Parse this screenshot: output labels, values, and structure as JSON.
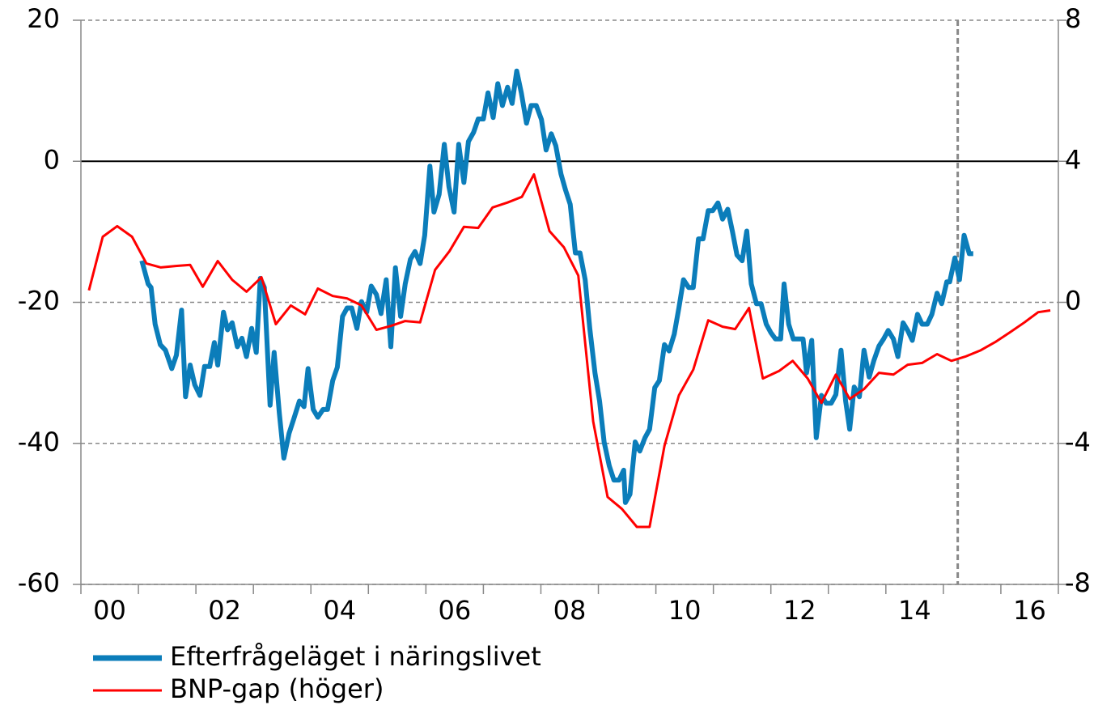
{
  "chart_data": {
    "type": "line",
    "xlim": [
      2000,
      2017
    ],
    "xticks": [
      {
        "value": 2000.5,
        "label": "00"
      },
      {
        "value": 2002.5,
        "label": "02"
      },
      {
        "value": 2004.5,
        "label": "04"
      },
      {
        "value": 2006.5,
        "label": "06"
      },
      {
        "value": 2008.5,
        "label": "08"
      },
      {
        "value": 2010.5,
        "label": "10"
      },
      {
        "value": 2012.5,
        "label": "12"
      },
      {
        "value": 2014.5,
        "label": "14"
      },
      {
        "value": 2016.5,
        "label": "16"
      }
    ],
    "ylim": [
      -60,
      20
    ],
    "yticks": [
      -60,
      -40,
      -20,
      0,
      20
    ],
    "y2lim": [
      -8,
      8
    ],
    "y2ticks": [
      -8,
      -4,
      0,
      4,
      8
    ],
    "grid": true,
    "zero_line": true,
    "forecast_line_x": 2015.25,
    "legend": "bottom-left",
    "series": [
      {
        "name": "Efterfrågeläget i näringslivet",
        "color": "#0b7dba",
        "x": [
          2001.06,
          2001.17,
          2001.22,
          2001.29,
          2001.38,
          2001.47,
          2001.58,
          2001.66,
          2001.75,
          2001.82,
          2001.9,
          2001.98,
          2002.07,
          2002.15,
          2002.24,
          2002.32,
          2002.38,
          2002.48,
          2002.55,
          2002.63,
          2002.72,
          2002.8,
          2002.88,
          2002.97,
          2003.05,
          2003.12,
          2003.19,
          2003.29,
          2003.36,
          2003.45,
          2003.53,
          2003.62,
          2003.7,
          2003.8,
          2003.88,
          2003.95,
          2004.04,
          2004.12,
          2004.21,
          2004.29,
          2004.38,
          2004.46,
          2004.55,
          2004.63,
          2004.71,
          2004.8,
          2004.88,
          2004.97,
          2005.05,
          2005.14,
          2005.22,
          2005.31,
          2005.39,
          2005.47,
          2005.56,
          2005.64,
          2005.73,
          2005.81,
          2005.9,
          2005.98,
          2006.07,
          2006.14,
          2006.23,
          2006.32,
          2006.4,
          2006.49,
          2006.57,
          2006.66,
          2006.74,
          2006.83,
          2006.91,
          2007,
          2007.08,
          2007.17,
          2007.25,
          2007.33,
          2007.42,
          2007.5,
          2007.58,
          2007.66,
          2007.75,
          2007.83,
          2007.92,
          2008.01,
          2008.09,
          2008.18,
          2008.26,
          2008.35,
          2008.43,
          2008.51,
          2008.6,
          2008.68,
          2008.77,
          2008.85,
          2008.94,
          2009.02,
          2009.1,
          2009.19,
          2009.27,
          2009.36,
          2009.44,
          2009.47,
          2009.55,
          2009.64,
          2009.72,
          2009.81,
          2009.89,
          2009.98,
          2010.06,
          2010.15,
          2010.23,
          2010.32,
          2010.4,
          2010.48,
          2010.57,
          2010.65,
          2010.74,
          2010.82,
          2010.91,
          2010.99,
          2011.08,
          2011.16,
          2011.25,
          2011.33,
          2011.41,
          2011.5,
          2011.58,
          2011.66,
          2011.75,
          2011.83,
          2011.92,
          2012,
          2012.08,
          2012.17,
          2012.23,
          2012.31,
          2012.39,
          2012.48,
          2012.56,
          2012.62,
          2012.71,
          2012.79,
          2012.88,
          2012.96,
          2013.05,
          2013.13,
          2013.22,
          2013.3,
          2013.37,
          2013.45,
          2013.54,
          2013.62,
          2013.71,
          2013.79,
          2013.88,
          2013.96,
          2014.04,
          2014.13,
          2014.21,
          2014.3,
          2014.38,
          2014.46,
          2014.55,
          2014.63,
          2014.72,
          2014.8,
          2014.89,
          2014.97,
          2015.06,
          2015.11,
          2015.2,
          2015.28,
          2015.36,
          2015.45,
          2015.52
        ],
        "values": [
          -14.1,
          -17.4,
          -17.9,
          -23.1,
          -26,
          -26.8,
          -29.4,
          -27.5,
          -21.1,
          -33.4,
          -28.9,
          -31.7,
          -33.2,
          -29.1,
          -29.1,
          -25.7,
          -28.9,
          -21.4,
          -23.9,
          -22.9,
          -26.3,
          -25.1,
          -27.7,
          -23.7,
          -27.1,
          -16.6,
          -17.9,
          -34.6,
          -27.1,
          -35.7,
          -42.1,
          -38.6,
          -36.6,
          -34,
          -34.8,
          -29.4,
          -35.2,
          -36.3,
          -35.2,
          -35.2,
          -31.1,
          -29.2,
          -22,
          -20.8,
          -20.8,
          -23.7,
          -19.9,
          -21.4,
          -17.7,
          -18.9,
          -21.6,
          -16.8,
          -26.3,
          -15.1,
          -22,
          -17.4,
          -13.9,
          -12.8,
          -14.5,
          -10.5,
          -0.7,
          -7.2,
          -4.7,
          2.4,
          -3.6,
          -7.2,
          2.4,
          -3,
          2.8,
          4.1,
          6,
          6,
          9.7,
          6.2,
          11,
          7.9,
          10.5,
          8.2,
          12.8,
          9.7,
          5.4,
          7.9,
          7.9,
          5.9,
          1.6,
          3.9,
          2.2,
          -1.8,
          -4.1,
          -6.1,
          -13,
          -13,
          -16.8,
          -23.7,
          -30,
          -34,
          -39.8,
          -43.2,
          -45.2,
          -45.2,
          -43.8,
          -48.4,
          -47.2,
          -39.8,
          -41.1,
          -39.2,
          -38,
          -32.1,
          -31.1,
          -26,
          -26.9,
          -24.5,
          -20.8,
          -16.8,
          -17.9,
          -17.9,
          -11,
          -11,
          -7,
          -7,
          -5.9,
          -8.2,
          -6.8,
          -9.9,
          -13.3,
          -14.1,
          -9.9,
          -17.4,
          -20.2,
          -20.2,
          -23.1,
          -24.3,
          -25.2,
          -25.2,
          -17.4,
          -23.1,
          -25.2,
          -25.2,
          -25.2,
          -30,
          -25.4,
          -39.2,
          -33.2,
          -34.3,
          -34.3,
          -33.1,
          -26.8,
          -34,
          -38,
          -32,
          -33.4,
          -26.8,
          -30.6,
          -28.3,
          -26.2,
          -25.2,
          -24,
          -25.2,
          -27.7,
          -22.9,
          -24,
          -25.4,
          -21.7,
          -23.1,
          -23.1,
          -21.7,
          -18.7,
          -20.2,
          -17.1,
          -17.1,
          -13.7,
          -16.8,
          -10.5,
          -13.1,
          -13.1
        ]
      },
      {
        "name": "BNP-gap (höger)",
        "color": "#ff0000",
        "axis": "y2",
        "x": [
          2000.14,
          2000.38,
          2000.63,
          2000.89,
          2001.14,
          2001.39,
          2001.65,
          2001.9,
          2002.12,
          2002.38,
          2002.63,
          2002.88,
          2003.14,
          2003.39,
          2003.65,
          2003.9,
          2004.12,
          2004.38,
          2004.63,
          2004.88,
          2005.14,
          2005.39,
          2005.64,
          2005.9,
          2006.16,
          2006.41,
          2006.66,
          2006.91,
          2007.16,
          2007.42,
          2007.67,
          2007.88,
          2008.15,
          2008.4,
          2008.65,
          2008.91,
          2009.16,
          2009.41,
          2009.67,
          2009.89,
          2010.15,
          2010.4,
          2010.65,
          2010.91,
          2011.16,
          2011.38,
          2011.62,
          2011.86,
          2012.14,
          2012.38,
          2012.64,
          2012.88,
          2013.13,
          2013.37,
          2013.62,
          2013.88,
          2014.13,
          2014.38,
          2014.63,
          2014.89,
          2015.14,
          2015.38,
          2015.65,
          2015.9,
          2016.16,
          2016.41,
          2016.65,
          2016.86
        ],
        "values": [
          0.34,
          1.86,
          2.16,
          1.86,
          1.1,
          0.99,
          1.03,
          1.06,
          0.44,
          1.17,
          0.64,
          0.3,
          0.71,
          -0.62,
          -0.09,
          -0.34,
          0.39,
          0.18,
          0.11,
          -0.09,
          -0.78,
          -0.67,
          -0.53,
          -0.57,
          0.92,
          1.45,
          2.14,
          2.11,
          2.69,
          2.83,
          2.99,
          3.63,
          2.02,
          1.56,
          0.76,
          -3.38,
          -5.52,
          -5.86,
          -6.37,
          -6.37,
          -4.07,
          -2.64,
          -1.91,
          -0.51,
          -0.69,
          -0.76,
          -0.16,
          -2.16,
          -1.95,
          -1.66,
          -2.16,
          -2.85,
          -2.05,
          -2.74,
          -2.46,
          -2,
          -2.05,
          -1.77,
          -1.72,
          -1.47,
          -1.66,
          -1.54,
          -1.36,
          -1.13,
          -0.85,
          -0.57,
          -0.28,
          -0.23
        ]
      }
    ]
  }
}
